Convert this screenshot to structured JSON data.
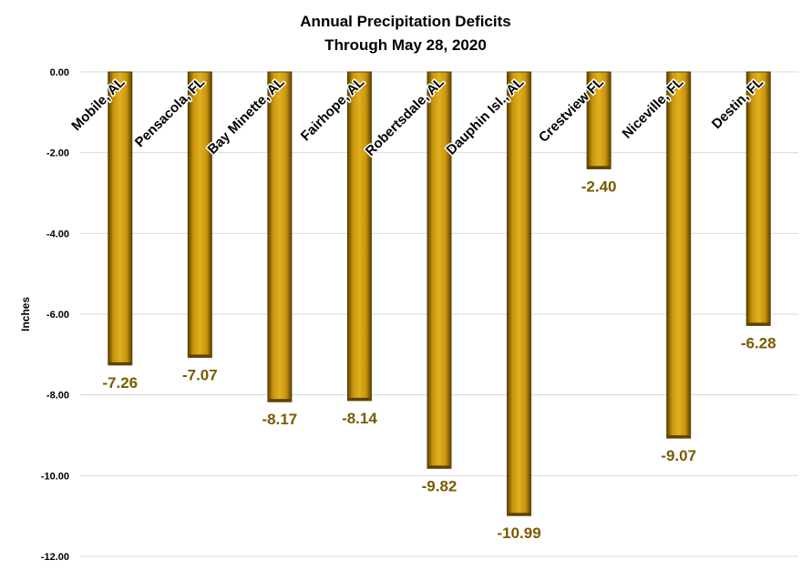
{
  "chart_data": {
    "type": "bar",
    "title": "Annual Precipitation Deficits",
    "subtitle": "Through May 28, 2020",
    "ylabel": "Inches",
    "xlabel": "",
    "categories": [
      "Mobile, AL",
      "Pensacola, FL",
      "Bay Minette, AL",
      "Fairhope, AL",
      "Robertsdale, AL",
      "Dauphin Isl., AL",
      "Crestview FL",
      "Niceville, FL",
      "Destin, FL"
    ],
    "values": [
      -7.26,
      -7.07,
      -8.17,
      -8.14,
      -9.82,
      -10.99,
      -2.4,
      -9.07,
      -6.28
    ],
    "data_labels": [
      "-7.26",
      "-7.07",
      "-8.17",
      "-8.14",
      "-9.82",
      "-10.99",
      "-2.40",
      "-9.07",
      "-6.28"
    ],
    "yticks": [
      "0.00",
      "-2.00",
      "-4.00",
      "-6.00",
      "-8.00",
      "-10.00",
      "-12.00"
    ],
    "ylim": [
      -12,
      0
    ],
    "grid": true,
    "legend": "none",
    "colors": {
      "bar": "#d4a010",
      "bar_dark": "#5c4200",
      "bar_light": "#f2cf55",
      "data_label": "#7a5a00",
      "grid": "#d9d9d9"
    }
  }
}
